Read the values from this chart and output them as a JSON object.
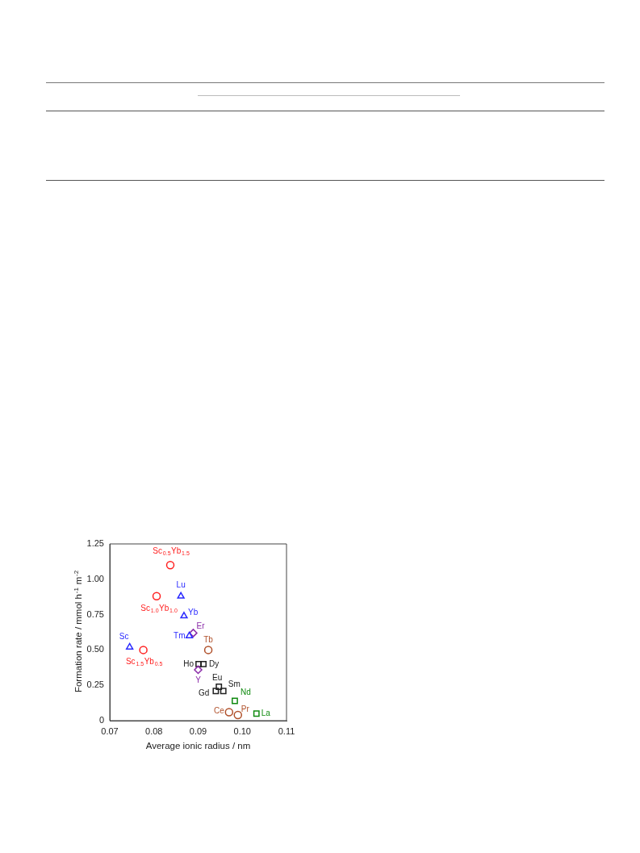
{
  "chart_data": {
    "type": "scatter",
    "xlabel": "Average ionic radius / nm",
    "ylabel": "Formation rate / mmol h$^{-1}$ m$^{-2}$",
    "xlim": [
      0.07,
      0.11
    ],
    "xticks": [
      {
        "value": 0.07,
        "label": "0.07"
      },
      {
        "value": 0.08,
        "label": "0.08"
      },
      {
        "value": 0.09,
        "label": "0.09"
      },
      {
        "value": 0.1,
        "label": "0.10"
      },
      {
        "value": 0.11,
        "label": "0.11"
      }
    ],
    "ylim": [
      0,
      1.25
    ],
    "yticks": [
      0,
      {
        "value": 0.25,
        "label": "0.25"
      },
      {
        "value": 0.5,
        "label": "0.50"
      },
      {
        "value": 0.75,
        "label": "0.75"
      },
      {
        "value": 1,
        "label": "1.00"
      },
      {
        "value": 1.25,
        "label": "1.25"
      }
    ],
    "grid": false,
    "legend": false,
    "series": [
      {
        "color": "#ff2020",
        "marker": "circle",
        "x": [
          0.0837,
          0.0806,
          0.0776
        ],
        "values": [
          1.1,
          0.88,
          0.5
        ]
      },
      {
        "color": "#2a2aff",
        "marker": "triangle",
        "x": [
          0.0745,
          0.0861,
          0.0868,
          0.088
        ],
        "values": [
          0.52,
          0.88,
          0.74,
          0.6
        ]
      },
      {
        "color": "#8a2aa8",
        "marker": "diamond",
        "x": [
          0.0889,
          0.09
        ],
        "values": [
          0.62,
          0.36
        ]
      },
      {
        "color": "#b0502a",
        "marker": "circle",
        "x": [
          0.0923,
          0.097,
          0.099
        ],
        "values": [
          0.5,
          0.06,
          0.04
        ]
      },
      {
        "color": "#202020",
        "marker": "square",
        "x": [
          0.0901,
          0.0912,
          0.0947,
          0.094,
          0.0957
        ],
        "values": [
          0.4,
          0.4,
          0.24,
          0.21,
          0.21
        ]
      },
      {
        "color": "#108a10",
        "marker": "square",
        "x": [
          0.0983,
          0.1032
        ],
        "values": [
          0.14,
          0.05
        ]
      }
    ],
    "annotations": [
      {
        "text": "Sc$_{0.5}$Yb$_{1.5}$",
        "x": 0.0837,
        "y": 1.1
      },
      {
        "text": "Sc$_{1.0}$Yb$_{1.0}$",
        "x": 0.0806,
        "y": 0.88
      },
      {
        "text": "Sc$_{1.5}$Yb$_{0.5}$",
        "x": 0.0776,
        "y": 0.5
      },
      {
        "text": "Sc",
        "x": 0.0745,
        "y": 0.52
      },
      {
        "text": "Lu",
        "x": 0.0861,
        "y": 0.88
      },
      {
        "text": "Yb",
        "x": 0.0868,
        "y": 0.74
      },
      {
        "text": "Tm",
        "x": 0.088,
        "y": 0.6
      },
      {
        "text": "Er",
        "x": 0.0889,
        "y": 0.62
      },
      {
        "text": "Y",
        "x": 0.09,
        "y": 0.36
      },
      {
        "text": "Tb",
        "x": 0.0923,
        "y": 0.5
      },
      {
        "text": "Ce",
        "x": 0.097,
        "y": 0.06
      },
      {
        "text": "Pr",
        "x": 0.099,
        "y": 0.04
      },
      {
        "text": "Ho",
        "x": 0.0901,
        "y": 0.4
      },
      {
        "text": "Dy",
        "x": 0.0912,
        "y": 0.4
      },
      {
        "text": "Eu",
        "x": 0.0947,
        "y": 0.24
      },
      {
        "text": "Gd",
        "x": 0.094,
        "y": 0.21
      },
      {
        "text": "Sm",
        "x": 0.0957,
        "y": 0.21
      },
      {
        "text": "Nd",
        "x": 0.0983,
        "y": 0.14
      },
      {
        "text": "La",
        "x": 0.1032,
        "y": 0.05
      }
    ]
  }
}
